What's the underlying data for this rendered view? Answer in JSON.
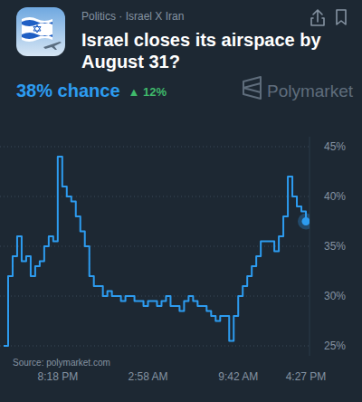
{
  "chart_data": {
    "type": "line",
    "title": "Israel closes its airspace by August 31?",
    "subtitle": "Politics · Israel X Iran",
    "annotations": [
      "38% chance",
      "▲ 12%",
      "Polymarket",
      "Source: polymarket.com"
    ],
    "categories": [
      null,
      null,
      null,
      null,
      null,
      null,
      null,
      null,
      null,
      null,
      null,
      null,
      "8:18 PM",
      null,
      null,
      null,
      null,
      null,
      null,
      null,
      null,
      null,
      null,
      null,
      null,
      null,
      null,
      null,
      null,
      null,
      null,
      null,
      "2:58 AM",
      null,
      null,
      null,
      null,
      null,
      null,
      null,
      null,
      null,
      null,
      null,
      null,
      null,
      null,
      null,
      null,
      null,
      null,
      null,
      "9:42 AM",
      null,
      null,
      null,
      null,
      null,
      null,
      null,
      null,
      null,
      null,
      null,
      null,
      null,
      null,
      "4:27 PM"
    ],
    "values": [
      25,
      32,
      34,
      36,
      33.5,
      34,
      32,
      33,
      33.5,
      35,
      36,
      35.5,
      44,
      41,
      40,
      39.5,
      38,
      36.5,
      35,
      32,
      31,
      31,
      30,
      30.5,
      30,
      30,
      29.5,
      30,
      30,
      29.5,
      29.5,
      29,
      29.5,
      29.5,
      29,
      29.5,
      30,
      29,
      29,
      28.5,
      29.5,
      30,
      29.5,
      29,
      29,
      28.5,
      28,
      27.5,
      28,
      28,
      25.5,
      28,
      30,
      31,
      32,
      33,
      34,
      35.5,
      35.5,
      35.5,
      34.5,
      36,
      38,
      42,
      40,
      39,
      38.5,
      37.5
    ],
    "color": "#2d9cf0",
    "line_style": "step",
    "ylim": [
      24,
      46
    ],
    "yticks": [
      {
        "value": 25,
        "label": "25%"
      },
      {
        "value": 30,
        "label": "30%"
      },
      {
        "value": 35,
        "label": "35%"
      },
      {
        "value": 40,
        "label": "40%"
      },
      {
        "value": 45,
        "label": "45%"
      }
    ],
    "grid": true
  }
}
